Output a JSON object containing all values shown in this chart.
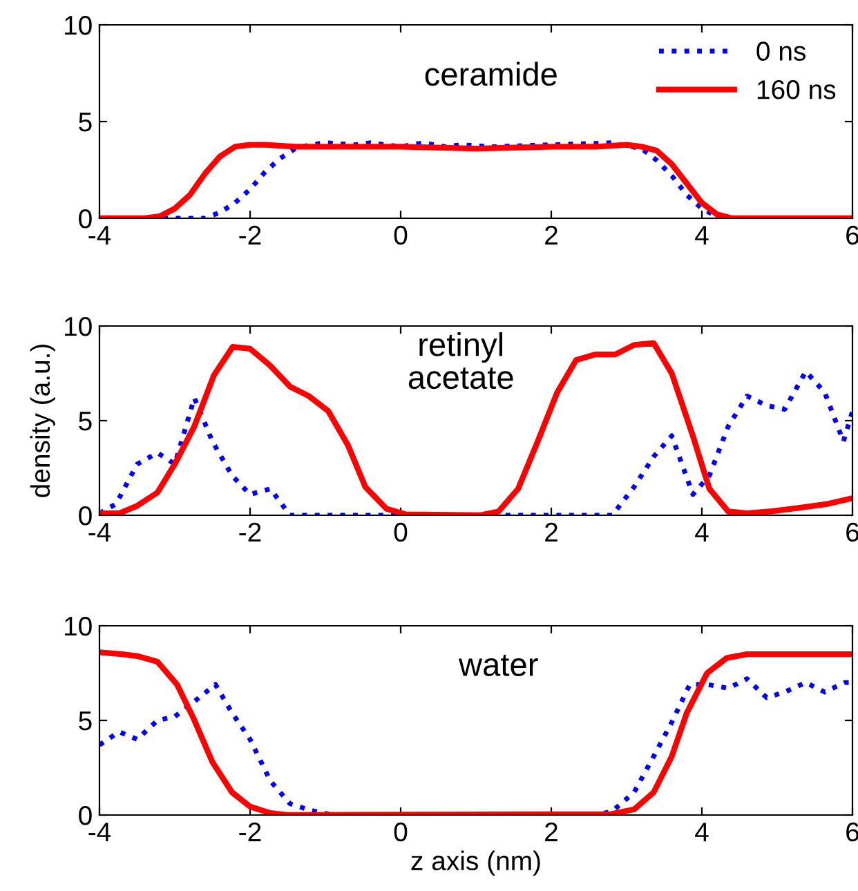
{
  "chart_data": [
    {
      "type": "line",
      "annotations": [
        "ceramide"
      ],
      "xlim": [
        -4,
        6
      ],
      "ylim": [
        0,
        10
      ],
      "xticks": [
        -4,
        -2,
        0,
        2,
        4,
        6
      ],
      "yticks": [
        0,
        5,
        10
      ],
      "grid": false,
      "legend": "top right",
      "marker": "none",
      "series": [
        {
          "name": "0 ns",
          "color": "#0000ff",
          "line_style": "dotted",
          "x": [
            -4,
            -3,
            -2.6,
            -2.4,
            -2.2,
            -2.0,
            -1.8,
            -1.6,
            -1.4,
            -1.2,
            -1.0,
            -0.6,
            -0.4,
            0,
            0.3,
            0.6,
            0.8,
            1.2,
            2.0,
            2.8,
            3.2,
            3.4,
            3.6,
            3.8,
            4.0,
            4.2,
            4.4,
            6
          ],
          "values": [
            0,
            0,
            0,
            0.3,
            0.8,
            1.5,
            2.4,
            3.1,
            3.6,
            3.8,
            3.9,
            3.8,
            3.9,
            3.7,
            3.9,
            3.7,
            3.8,
            3.7,
            3.8,
            3.9,
            3.6,
            3.0,
            2.2,
            1.2,
            0.5,
            0.1,
            0,
            0
          ]
        },
        {
          "name": "160 ns",
          "color": "#ff0000",
          "line_style": "solid",
          "x": [
            -4,
            -3.4,
            -3.2,
            -3.0,
            -2.8,
            -2.6,
            -2.4,
            -2.2,
            -2.0,
            -1.8,
            -1.4,
            0,
            1,
            2,
            2.6,
            3.0,
            3.2,
            3.4,
            3.6,
            3.8,
            4.0,
            4.2,
            4.4,
            5,
            6
          ],
          "values": [
            0,
            0,
            0.1,
            0.5,
            1.2,
            2.3,
            3.2,
            3.7,
            3.8,
            3.8,
            3.7,
            3.7,
            3.6,
            3.7,
            3.7,
            3.8,
            3.7,
            3.5,
            2.8,
            1.8,
            0.8,
            0.2,
            0,
            0,
            0
          ]
        }
      ]
    },
    {
      "type": "line",
      "annotations": [
        "retinyl\nacetate"
      ],
      "ylabel": "density (a.u.)",
      "xlim": [
        -4,
        6
      ],
      "ylim": [
        0,
        10
      ],
      "xticks": [
        -4,
        -2,
        0,
        2,
        4,
        6
      ],
      "yticks": [
        0,
        5,
        10
      ],
      "grid": false,
      "marker": "none",
      "series": [
        {
          "color": "#0000ff",
          "line_style": "dotted",
          "x": [
            -4,
            -3.78,
            -3.5,
            -3.23,
            -3.0,
            -2.74,
            -2.5,
            -2.24,
            -2.0,
            -1.73,
            -1.47,
            2.81,
            3.1,
            3.36,
            3.6,
            3.88,
            4.1,
            4.35,
            4.6,
            4.86,
            5.1,
            5.38,
            5.63,
            5.88,
            6
          ],
          "values": [
            0.1,
            0.6,
            2.7,
            3.3,
            2.7,
            6.2,
            3.9,
            2.1,
            1.1,
            1.4,
            0,
            0,
            1.5,
            3.1,
            4.2,
            1.1,
            2.1,
            4.7,
            6.3,
            5.8,
            5.6,
            7.6,
            6.5,
            3.9,
            5.5
          ]
        },
        {
          "color": "#ff0000",
          "line_style": "solid",
          "x": [
            -4,
            -3.74,
            -3.5,
            -3.23,
            -3.0,
            -2.74,
            -2.48,
            -2.23,
            -2.0,
            -1.73,
            -1.47,
            -1.22,
            -0.96,
            -0.7,
            -0.47,
            -0.19,
            0.07,
            1.05,
            1.3,
            1.56,
            1.82,
            2.08,
            2.33,
            2.59,
            2.85,
            3.1,
            3.36,
            3.6,
            3.88,
            4.1,
            4.35,
            4.6,
            4.9,
            5.3,
            5.67,
            6
          ],
          "values": [
            0.1,
            0.1,
            0.5,
            1.2,
            2.7,
            4.7,
            7.4,
            8.9,
            8.8,
            7.9,
            6.8,
            6.3,
            5.5,
            3.7,
            1.5,
            0.35,
            0.05,
            0,
            0.2,
            1.4,
            3.9,
            6.5,
            8.2,
            8.5,
            8.5,
            9.0,
            9.1,
            7.5,
            4.2,
            1.4,
            0.2,
            0.1,
            0.2,
            0.4,
            0.6,
            0.9
          ]
        }
      ]
    },
    {
      "type": "line",
      "annotations": [
        "water"
      ],
      "xlabel": "z axis (nm)",
      "xlim": [
        -4,
        6
      ],
      "ylim": [
        0,
        10
      ],
      "xticks": [
        -4,
        -2,
        0,
        2,
        4,
        6
      ],
      "yticks": [
        0,
        5,
        10
      ],
      "grid": false,
      "marker": "none",
      "series": [
        {
          "color": "#0000ff",
          "line_style": "dotted",
          "x": [
            -4,
            -3.74,
            -3.5,
            -3.23,
            -3.0,
            -2.74,
            -2.46,
            -2.24,
            -2.0,
            -1.73,
            -1.47,
            -1.2,
            -0.9,
            2.6,
            2.81,
            3.1,
            3.36,
            3.6,
            3.84,
            4.07,
            4.35,
            4.6,
            4.86,
            5.1,
            5.38,
            5.63,
            5.9,
            6
          ],
          "values": [
            3.7,
            4.4,
            4.0,
            5.0,
            5.2,
            6.0,
            6.9,
            5.4,
            4.0,
            1.8,
            0.6,
            0.25,
            0,
            0,
            0.2,
            1.2,
            3.1,
            4.9,
            6.9,
            6.9,
            6.7,
            7.2,
            6.2,
            6.5,
            7.0,
            6.5,
            7.0,
            7.0
          ]
        },
        {
          "color": "#ff0000",
          "line_style": "solid",
          "x": [
            -4,
            -3.7,
            -3.5,
            -3.23,
            -2.97,
            -2.75,
            -2.5,
            -2.24,
            -2.0,
            -1.73,
            -1.5,
            2.8,
            3.1,
            3.36,
            3.6,
            3.8,
            4.07,
            4.33,
            4.6,
            5,
            6
          ],
          "values": [
            8.6,
            8.5,
            8.4,
            8.1,
            6.9,
            5.1,
            2.8,
            1.2,
            0.45,
            0.1,
            0,
            0.05,
            0.3,
            1.2,
            3.1,
            5.4,
            7.5,
            8.3,
            8.5,
            8.5,
            8.5
          ]
        }
      ]
    }
  ]
}
